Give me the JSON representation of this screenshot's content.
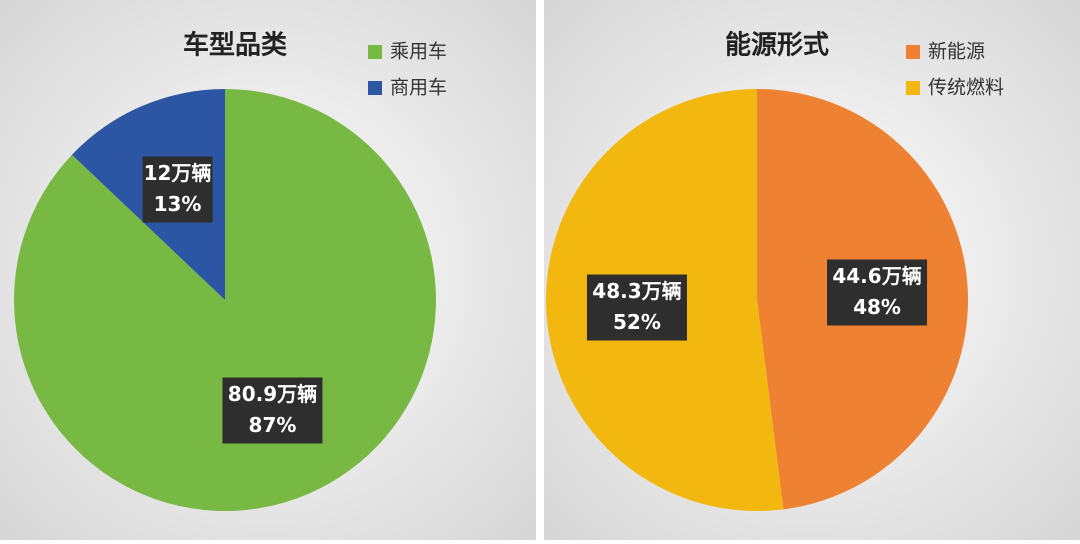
{
  "chart_data": [
    {
      "type": "pie",
      "title": "车型品类",
      "categories": [
        "乘用车",
        "商用车"
      ],
      "values": [
        80.9,
        12
      ],
      "value_labels": [
        "80.9万辆",
        "12万辆"
      ],
      "percents": [
        87,
        13
      ],
      "percent_labels": [
        "87%",
        "13%"
      ],
      "colors": [
        "#78b943",
        "#2c56a3"
      ]
    },
    {
      "type": "pie",
      "title": "能源形式",
      "categories": [
        "新能源",
        "传统燃料"
      ],
      "values": [
        44.6,
        48.3
      ],
      "value_labels": [
        "44.6万辆",
        "48.3万辆"
      ],
      "percents": [
        48,
        52
      ],
      "percent_labels": [
        "48%",
        "52%"
      ],
      "colors": [
        "#ee8232",
        "#f3b80f"
      ]
    }
  ]
}
